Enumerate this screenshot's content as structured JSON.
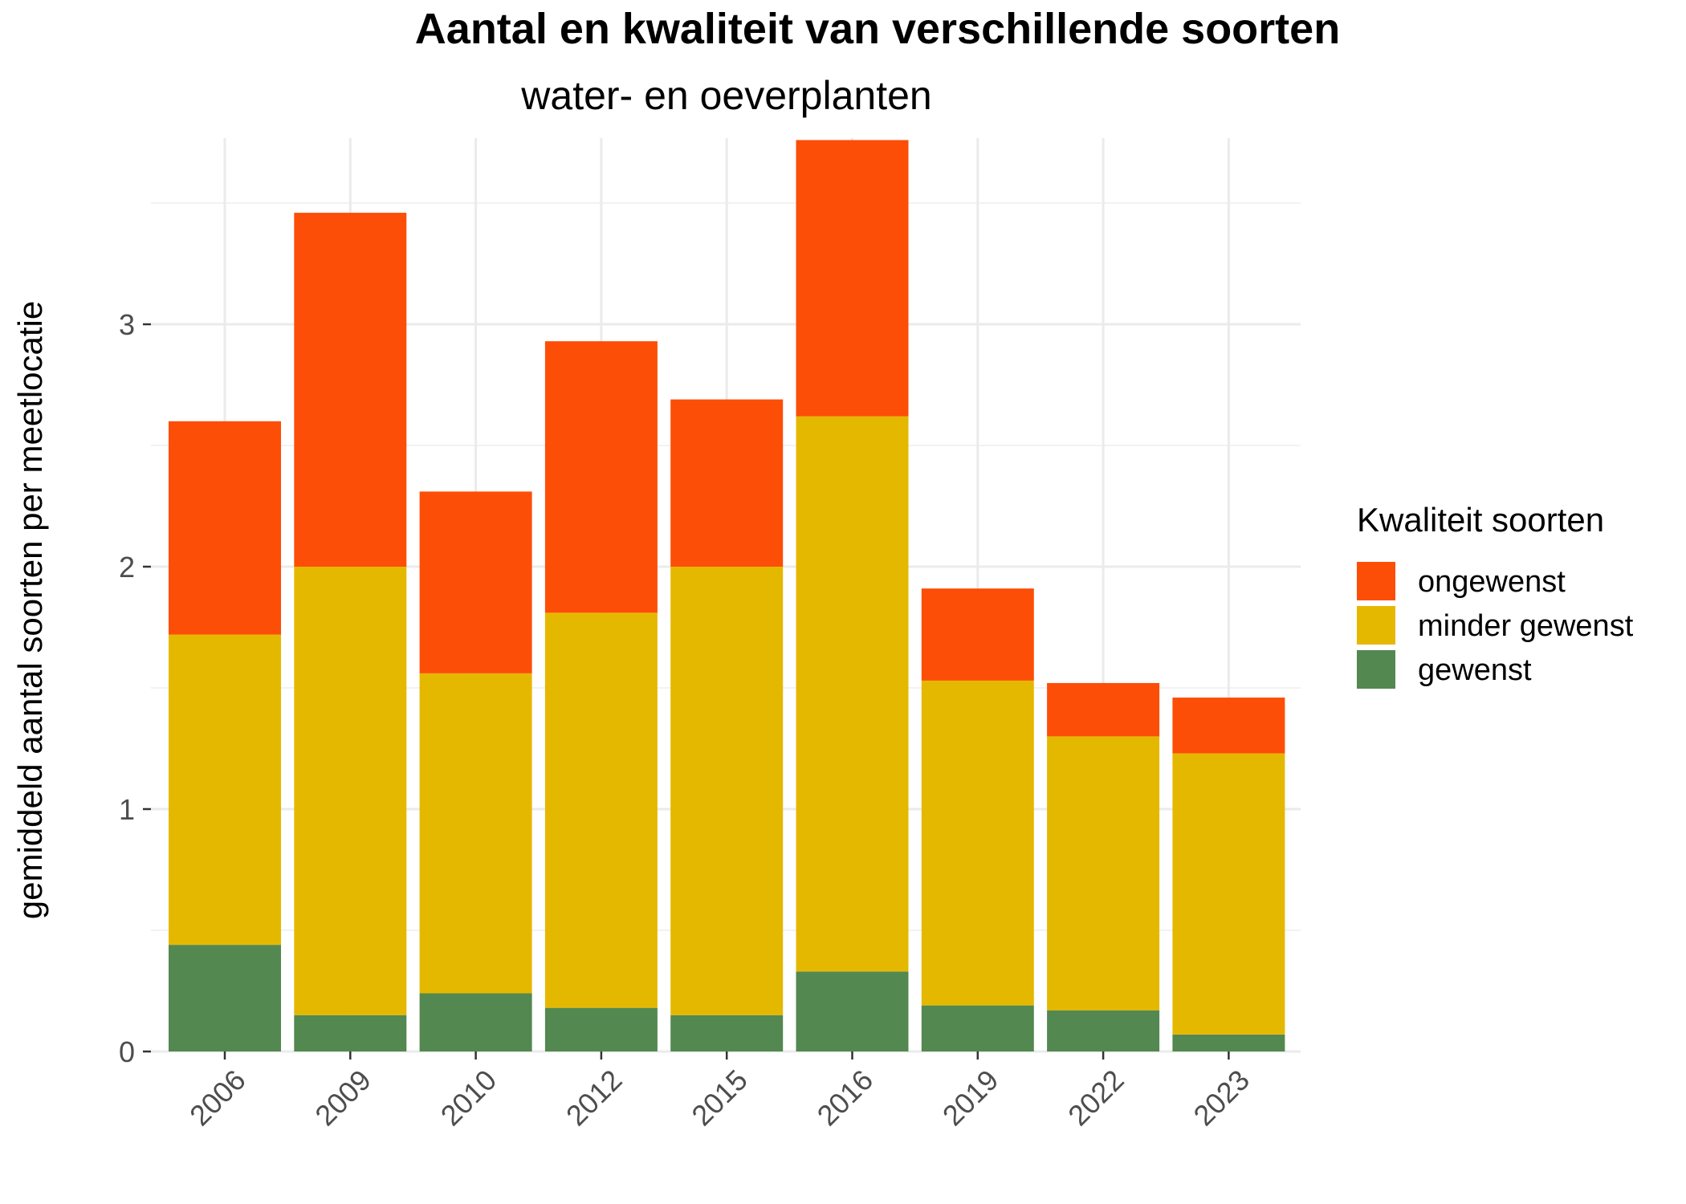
{
  "chart_data": {
    "type": "bar",
    "stacked": true,
    "title": "Aantal en kwaliteit van verschillende soorten",
    "subtitle": "water- en oeverplanten",
    "xlabel": "",
    "ylabel": "gemiddeld aantal soorten per meetlocatie",
    "categories": [
      "2006",
      "2009",
      "2010",
      "2012",
      "2015",
      "2016",
      "2019",
      "2022",
      "2023"
    ],
    "yticks": [
      0,
      1,
      2,
      3
    ],
    "ylim": [
      0,
      3.76
    ],
    "grid": true,
    "legend": {
      "title": "Kwaliteit soorten",
      "placement": "right",
      "order": [
        "ongewenst",
        "minder gewenst",
        "gewenst"
      ]
    },
    "series": [
      {
        "name": "gewenst",
        "color": "#538850",
        "values": [
          0.44,
          0.15,
          0.24,
          0.18,
          0.15,
          0.33,
          0.19,
          0.17,
          0.07
        ]
      },
      {
        "name": "minder gewenst",
        "color": "#E5B800",
        "values": [
          1.28,
          1.85,
          1.32,
          1.63,
          1.85,
          2.29,
          1.34,
          1.13,
          1.16
        ]
      },
      {
        "name": "ongewenst",
        "color": "#FC4E07",
        "values": [
          0.88,
          1.46,
          0.75,
          1.12,
          0.69,
          1.14,
          0.38,
          0.22,
          0.23
        ]
      }
    ]
  }
}
